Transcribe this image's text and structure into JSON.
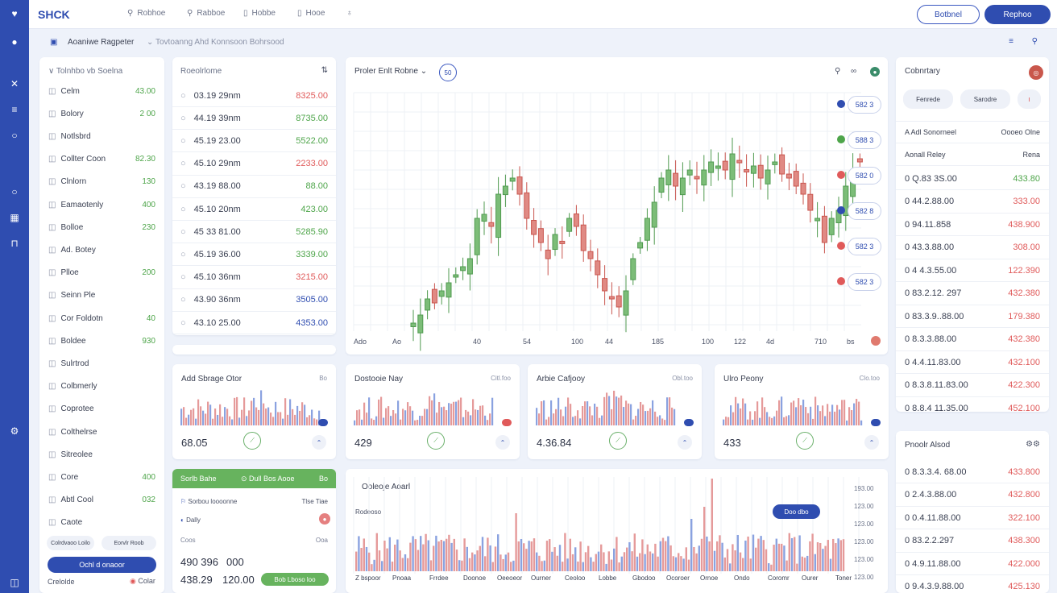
{
  "brand": "SHCK",
  "nav": [
    "Robhoe",
    "Rabboe",
    "Hobbe",
    "Hooe"
  ],
  "top_buttons": {
    "outline": "Botbnel",
    "filled": "Rephoo"
  },
  "subheader": {
    "title": "Aoaniwe Ragpeter",
    "crumb": "Tovtoanng Ahd Konnsoon Bohrsood"
  },
  "sidebar": {
    "heading": "Tolnhbo vb Soelna",
    "items": [
      {
        "label": "Celm",
        "value": "43.00"
      },
      {
        "label": "Bolory",
        "value": "2 00"
      },
      {
        "label": "Notlsbrd",
        "value": ""
      },
      {
        "label": "Collter Coon",
        "value": "82.30"
      },
      {
        "label": "Clnlorn",
        "value": "130"
      },
      {
        "label": "Eamaotenly",
        "value": "400"
      },
      {
        "label": "Bolloe",
        "value": "230"
      },
      {
        "label": "Ad. Botey",
        "value": ""
      },
      {
        "label": "Plloe",
        "value": "200"
      },
      {
        "label": "Seinn Ple",
        "value": ""
      },
      {
        "label": "Cor Foldotn",
        "value": "40"
      },
      {
        "label": "Boldee",
        "value": "930"
      },
      {
        "label": "Sulrtrod",
        "value": ""
      },
      {
        "label": "Colbmerly",
        "value": ""
      },
      {
        "label": "Coprotee",
        "value": ""
      },
      {
        "label": "Colthelrse",
        "value": ""
      },
      {
        "label": "Sitreolee",
        "value": ""
      },
      {
        "label": "Core",
        "value": "400"
      },
      {
        "label": "Abtl Cool",
        "value": "032"
      },
      {
        "label": "Caote",
        "value": ""
      }
    ],
    "pills": [
      "Colrdvaoo Loilo",
      "Eorvlr Roob"
    ],
    "action": "Ochl d onaoor",
    "footer_left": "Crelolde",
    "footer_right": "Colar"
  },
  "orders": {
    "heading": "Roeolrlome",
    "rows": [
      {
        "time": "03.19 29nm",
        "price": "8325.00",
        "tone": "r"
      },
      {
        "time": "44.19 39nm",
        "price": "8735.00",
        "tone": "g"
      },
      {
        "time": "45.19 23.00",
        "price": "5522.00",
        "tone": "g"
      },
      {
        "time": "45.10 29nm",
        "price": "2233.00",
        "tone": "r"
      },
      {
        "time": "43.19 88.00",
        "price": "88.00",
        "tone": "g"
      },
      {
        "time": "45.10 20nm",
        "price": "423.00",
        "tone": "g"
      },
      {
        "time": "45 33 81.00",
        "price": "5285.90",
        "tone": "g"
      },
      {
        "time": "45.19 36.00",
        "price": "3339.00",
        "tone": "g"
      },
      {
        "time": "45.10 36nm",
        "price": "3215.00",
        "tone": "r"
      },
      {
        "time": "43.90 36nm",
        "price": "3505.00",
        "tone": "b"
      },
      {
        "time": "43.10 25.00",
        "price": "4353.00",
        "tone": "b"
      }
    ]
  },
  "main_chart": {
    "title": "Proler Enlt Robne",
    "badge": "50",
    "x_ticks": [
      "Ado",
      "Ao",
      "40",
      "54",
      "100",
      "44",
      "185",
      "100",
      "122",
      "4d",
      "710",
      "bs"
    ],
    "price_tags": [
      {
        "label": "582 3",
        "color": "#2f4db0"
      },
      {
        "label": "588 3",
        "color": "#4ea54a"
      },
      {
        "label": "582 0",
        "color": "#e05a5a"
      },
      {
        "label": "582 8",
        "color": "#2f4db0"
      },
      {
        "label": "582 3",
        "color": "#e05a5a"
      },
      {
        "label": "582 3",
        "color": "#e05a5a"
      }
    ]
  },
  "mini_cards": [
    {
      "title": "Add Sbrage Otor",
      "sub": "Bo",
      "value": "68.05",
      "tag_color": "#2f4db0"
    },
    {
      "title": "Dostooie Nay",
      "sub": "Citl.foo",
      "value": "429",
      "tag_color": "#e05a5a"
    },
    {
      "title": "Arbie Cafjooy",
      "sub": "Obl.too",
      "value": "4.36.84",
      "tag_color": "#2f4db0"
    },
    {
      "title": "Ulro Peony",
      "sub": "Clo.too",
      "value": "433",
      "tag_color": "#2f4db0"
    }
  ],
  "trade_panel": {
    "banner": [
      "Sorlb Bahe",
      "Dull Bos Aooe",
      "Bo"
    ],
    "line1_left": "Sorbou loooonne",
    "line1_right": "Tlse Tiae",
    "line2": "Dally",
    "line3_left": "Coos",
    "line3_right": "Ooa",
    "big1": "490 396",
    "big2": "000",
    "big3": "438.29",
    "big4": "120.00",
    "pill": "Bob Lboso loo"
  },
  "volume": {
    "title": "Ooleoje Aoarl",
    "sub": "Rodeoso",
    "bubble": "Doo dbo",
    "y_ticks": [
      "193.00",
      "123.00",
      "123.00",
      "123.00",
      "123.00",
      "123.00"
    ],
    "tabs": [
      "Z bspoor",
      "Pnoaa",
      "Frrdee",
      "Doonoe",
      "Oeeoeor",
      "Ourner",
      "Ceoloo",
      "Lobbe",
      "Gbodoo",
      "Ocoroer",
      "Ornoe",
      "Ondo",
      "Coromr",
      "Ourer",
      "Toner"
    ]
  },
  "right_panel": {
    "heading": "Cobnrtary",
    "buttons": [
      "Fenrede",
      "Sarodre"
    ],
    "section1_head_left": "A Adl Sonorneel",
    "section1_head_right": "Oooeo Olne",
    "section1_sub_left": "Aonall Reley",
    "section1_sub_right": "Rena",
    "list1": [
      {
        "label": "0 Q.83 3S.00",
        "val": "433.80",
        "tone": "g"
      },
      {
        "label": "0 44.2.88.00",
        "val": "333.00",
        "tone": "r"
      },
      {
        "label": "0 94.11.858",
        "val": "438.900",
        "tone": "r"
      },
      {
        "label": "0 43.3.88.00",
        "val": "308.00",
        "tone": "r"
      },
      {
        "label": "0 4 4.3.55.00",
        "val": "122.390",
        "tone": "r"
      },
      {
        "label": "0 83.2.12. 297",
        "val": "432.380",
        "tone": "r"
      },
      {
        "label": "0 83.3.9..88.00",
        "val": "179.380",
        "tone": "r"
      },
      {
        "label": "0 8.3.3.88.00",
        "val": "432.380",
        "tone": "r"
      },
      {
        "label": "0 4.4.11.83.00",
        "val": "432.100",
        "tone": "r"
      },
      {
        "label": "0 8.3.8.11.83.00",
        "val": "422.300",
        "tone": "r"
      },
      {
        "label": "0 8.8.4 11.35.00",
        "val": "452.100",
        "tone": "r"
      }
    ],
    "section2_head": "Pnoolr Alsod",
    "list2": [
      {
        "label": "0 8.3.3.4. 68.00",
        "val": "433.800",
        "tone": "r"
      },
      {
        "label": "0 2.4.3.88.00",
        "val": "432.800",
        "tone": "r"
      },
      {
        "label": "0 0.4.11.88.00",
        "val": "322.100",
        "tone": "r"
      },
      {
        "label": "0 83.2.2.297",
        "val": "438.300",
        "tone": "r"
      },
      {
        "label": "0 4.9.11.88.00",
        "val": "422.000",
        "tone": "r"
      },
      {
        "label": "0 9.4.3.9.88.00",
        "val": "425.130",
        "tone": "r"
      }
    ]
  },
  "colors": {
    "accent": "#2f4db0",
    "green": "#4ea54a",
    "red": "#e05a5a"
  }
}
